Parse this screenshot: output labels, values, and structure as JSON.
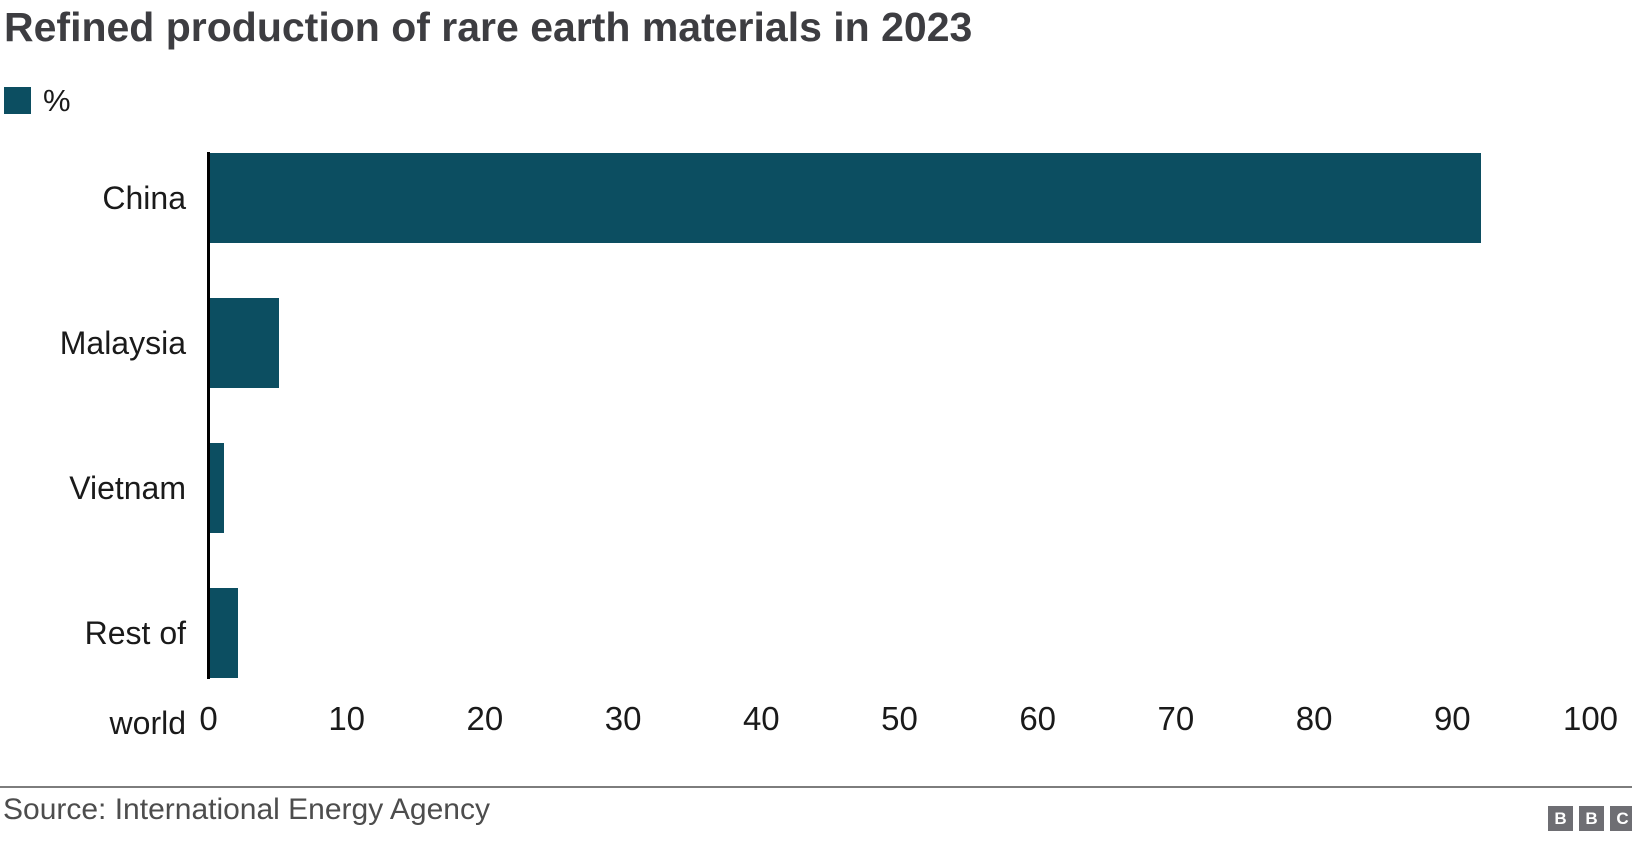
{
  "chart_data": {
    "type": "bar",
    "orientation": "horizontal",
    "title": "Refined production of rare earth materials in 2023",
    "legend_label": "%",
    "categories": [
      "China",
      "Malaysia",
      "Vietnam",
      "Rest of world"
    ],
    "values": [
      92,
      5,
      1,
      2
    ],
    "xlabel": "",
    "ylabel": "",
    "xlim": [
      0,
      100
    ],
    "x_ticks": [
      0,
      10,
      20,
      30,
      40,
      50,
      60,
      70,
      80,
      90,
      100
    ],
    "grid": false,
    "legend_position": "top-left",
    "bar_color": "#0c4e61",
    "source": "Source: International Energy Agency"
  },
  "branding": {
    "logo_letters": [
      "B",
      "B",
      "C"
    ],
    "logo_color": "#6e6e73"
  }
}
